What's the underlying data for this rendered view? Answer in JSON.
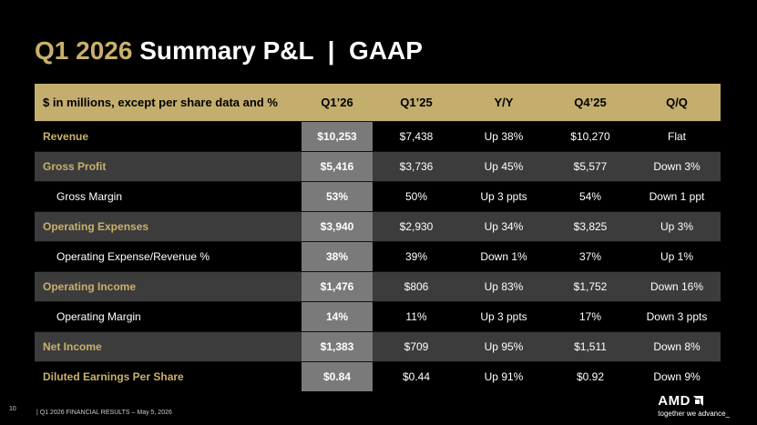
{
  "title": {
    "part1": "Q1 2026",
    "part2": "Summary P&L  |  GAAP"
  },
  "table": {
    "headers": [
      "$ in millions, except per share data and %",
      "Q1’26",
      "Q1’25",
      "Y/Y",
      "Q4’25",
      "Q/Q"
    ],
    "rows": [
      {
        "label": "Revenue",
        "q126": "$10,253",
        "q125": "$7,438",
        "yy": "Up 38%",
        "q425": "$10,270",
        "qq": "Flat"
      },
      {
        "label": "Gross Profit",
        "q126": "$5,416",
        "q125": "$3,736",
        "yy": "Up 45%",
        "q425": "$5,577",
        "qq": "Down 3%"
      },
      {
        "label": "Gross Margin",
        "q126": "53%",
        "q125": "50%",
        "yy": "Up 3 ppts",
        "q425": "54%",
        "qq": "Down 1 ppt"
      },
      {
        "label": "Operating Expenses",
        "q126": "$3,940",
        "q125": "$2,930",
        "yy": "Up 34%",
        "q425": "$3,825",
        "qq": "Up 3%"
      },
      {
        "label": "Operating Expense/Revenue %",
        "q126": "38%",
        "q125": "39%",
        "yy": "Down 1%",
        "q425": "37%",
        "qq": "Up 1%"
      },
      {
        "label": "Operating Income",
        "q126": "$1,476",
        "q125": "$806",
        "yy": "Up 83%",
        "q425": "$1,752",
        "qq": "Down 16%"
      },
      {
        "label": "Operating Margin",
        "q126": "14%",
        "q125": "11%",
        "yy": "Up 3 ppts",
        "q425": "17%",
        "qq": "Down 3 ppts"
      },
      {
        "label": "Net Income",
        "q126": "$1,383",
        "q125": "$709",
        "yy": "Up 95%",
        "q425": "$1,511",
        "qq": "Down 8%"
      },
      {
        "label": "Diluted Earnings Per Share",
        "q126": "$0.84",
        "q125": "$0.44",
        "yy": "Up 91%",
        "q425": "$0.92",
        "qq": "Down 9%"
      }
    ]
  },
  "footer": {
    "page_number": "10",
    "text": "|  Q1 2026 FINANCIAL RESULTS – May 5, 2026"
  },
  "logo": {
    "brand": "AMD",
    "tagline": "together we advance_"
  },
  "colors": {
    "accent": "#c4ae6e",
    "highlight_column": "#7a7a7a",
    "band": "#3c3c3c"
  },
  "icons": {
    "logo_mark": "amd-arrow-icon"
  }
}
